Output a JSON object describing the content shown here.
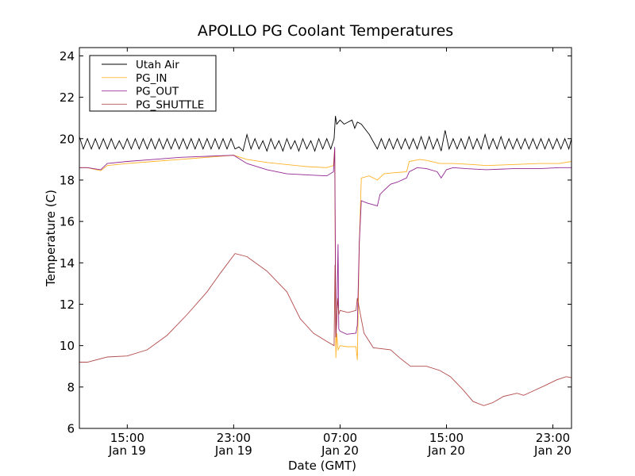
{
  "chart_data": {
    "type": "line",
    "title": "APOLLO PG Coolant Temperatures",
    "xlabel": "Date (GMT)",
    "ylabel": "Temperature (C)",
    "x_units": "hours since Jan 19 00:00 GMT",
    "xlim": [
      11.4,
      48.4
    ],
    "ylim": [
      6,
      24.4
    ],
    "grid": false,
    "legend_placement": "top-left",
    "yticks": [
      6,
      8,
      10,
      12,
      14,
      16,
      18,
      20,
      22,
      24
    ],
    "xticks": [
      {
        "value": 15,
        "time": "15:00",
        "date": "Jan 19"
      },
      {
        "value": 23,
        "time": "23:00",
        "date": "Jan 19"
      },
      {
        "value": 31,
        "time": "07:00",
        "date": "Jan 20"
      },
      {
        "value": 39,
        "time": "15:00",
        "date": "Jan 20"
      },
      {
        "value": 47,
        "time": "23:00",
        "date": "Jan 20"
      }
    ],
    "series": [
      {
        "name": "Utah Air",
        "color": "#000000",
        "points": [
          [
            11.4,
            20.1
          ],
          [
            11.7,
            19.5
          ],
          [
            12.0,
            20.0
          ],
          [
            12.3,
            19.5
          ],
          [
            12.6,
            20.0
          ],
          [
            12.9,
            19.5
          ],
          [
            13.2,
            20.0
          ],
          [
            13.5,
            19.5
          ],
          [
            13.8,
            20.0
          ],
          [
            14.1,
            19.5
          ],
          [
            14.4,
            19.9
          ],
          [
            14.7,
            19.5
          ],
          [
            15.0,
            20.0
          ],
          [
            15.3,
            19.5
          ],
          [
            15.6,
            20.0
          ],
          [
            15.9,
            19.5
          ],
          [
            16.2,
            20.0
          ],
          [
            16.5,
            19.5
          ],
          [
            16.8,
            20.0
          ],
          [
            17.1,
            19.5
          ],
          [
            17.4,
            20.0
          ],
          [
            17.7,
            19.5
          ],
          [
            18.0,
            20.0
          ],
          [
            18.3,
            19.5
          ],
          [
            18.6,
            20.0
          ],
          [
            18.9,
            19.5
          ],
          [
            19.2,
            20.0
          ],
          [
            19.5,
            19.5
          ],
          [
            19.8,
            20.0
          ],
          [
            20.1,
            19.5
          ],
          [
            20.4,
            20.0
          ],
          [
            20.7,
            19.5
          ],
          [
            21.0,
            20.0
          ],
          [
            21.3,
            19.5
          ],
          [
            21.6,
            20.0
          ],
          [
            21.9,
            19.5
          ],
          [
            22.2,
            20.0
          ],
          [
            22.5,
            19.5
          ],
          [
            22.8,
            20.0
          ],
          [
            23.1,
            19.5
          ],
          [
            23.4,
            19.6
          ],
          [
            23.7,
            19.4
          ],
          [
            24.0,
            20.2
          ],
          [
            24.3,
            19.5
          ],
          [
            24.6,
            20.0
          ],
          [
            24.9,
            19.5
          ],
          [
            25.2,
            19.9
          ],
          [
            25.5,
            19.4
          ],
          [
            25.8,
            20.0
          ],
          [
            26.1,
            19.5
          ],
          [
            26.4,
            19.9
          ],
          [
            26.7,
            19.4
          ],
          [
            27.0,
            20.0
          ],
          [
            27.3,
            19.5
          ],
          [
            27.6,
            19.9
          ],
          [
            27.9,
            19.4
          ],
          [
            28.2,
            20.0
          ],
          [
            28.5,
            19.5
          ],
          [
            28.8,
            19.9
          ],
          [
            29.1,
            19.4
          ],
          [
            29.4,
            20.0
          ],
          [
            29.7,
            19.5
          ],
          [
            30.0,
            20.0
          ],
          [
            30.3,
            19.5
          ],
          [
            30.55,
            20.0
          ],
          [
            30.65,
            21.1
          ],
          [
            30.75,
            20.7
          ],
          [
            31.0,
            20.9
          ],
          [
            31.3,
            20.7
          ],
          [
            31.6,
            20.8
          ],
          [
            31.9,
            20.9
          ],
          [
            32.1,
            20.5
          ],
          [
            32.3,
            20.8
          ],
          [
            32.6,
            20.7
          ],
          [
            33.2,
            20.2
          ],
          [
            33.8,
            19.5
          ],
          [
            34.1,
            20.0
          ],
          [
            34.4,
            19.5
          ],
          [
            34.7,
            20.0
          ],
          [
            35.0,
            19.5
          ],
          [
            35.3,
            20.0
          ],
          [
            35.6,
            19.5
          ],
          [
            35.9,
            20.0
          ],
          [
            36.2,
            19.5
          ],
          [
            36.5,
            20.0
          ],
          [
            36.8,
            19.5
          ],
          [
            37.1,
            20.1
          ],
          [
            37.4,
            19.5
          ],
          [
            37.7,
            20.1
          ],
          [
            38.0,
            19.5
          ],
          [
            38.3,
            20.0
          ],
          [
            38.6,
            19.4
          ],
          [
            38.9,
            20.4
          ],
          [
            39.2,
            19.5
          ],
          [
            39.5,
            20.0
          ],
          [
            39.8,
            19.5
          ],
          [
            40.1,
            20.0
          ],
          [
            40.4,
            19.5
          ],
          [
            40.7,
            20.1
          ],
          [
            41.0,
            19.5
          ],
          [
            41.3,
            20.0
          ],
          [
            41.6,
            19.5
          ],
          [
            41.9,
            20.2
          ],
          [
            42.2,
            19.5
          ],
          [
            42.5,
            20.0
          ],
          [
            42.8,
            19.5
          ],
          [
            43.1,
            20.1
          ],
          [
            43.4,
            19.5
          ],
          [
            43.7,
            20.0
          ],
          [
            44.0,
            19.5
          ],
          [
            44.3,
            20.0
          ],
          [
            44.6,
            19.5
          ],
          [
            44.9,
            20.0
          ],
          [
            45.2,
            19.5
          ],
          [
            45.5,
            20.0
          ],
          [
            45.8,
            19.5
          ],
          [
            46.1,
            20.0
          ],
          [
            46.4,
            19.5
          ],
          [
            46.7,
            20.0
          ],
          [
            47.0,
            19.5
          ],
          [
            47.3,
            20.0
          ],
          [
            47.6,
            19.5
          ],
          [
            47.9,
            20.0
          ],
          [
            48.2,
            19.5
          ],
          [
            48.4,
            20.0
          ]
        ]
      },
      {
        "name": "PG_IN",
        "color": "#ffa500",
        "points": [
          [
            11.4,
            18.6
          ],
          [
            12.0,
            18.6
          ],
          [
            13.0,
            18.45
          ],
          [
            13.5,
            18.7
          ],
          [
            15.0,
            18.8
          ],
          [
            17.0,
            18.9
          ],
          [
            19.0,
            19.0
          ],
          [
            21.0,
            19.1
          ],
          [
            23.0,
            19.2
          ],
          [
            24.0,
            19.0
          ],
          [
            25.5,
            18.85
          ],
          [
            27.0,
            18.75
          ],
          [
            28.5,
            18.65
          ],
          [
            30.0,
            18.6
          ],
          [
            30.5,
            18.7
          ],
          [
            30.6,
            19.5
          ],
          [
            30.68,
            9.4
          ],
          [
            30.75,
            10.6
          ],
          [
            30.85,
            9.8
          ],
          [
            31.0,
            10.0
          ],
          [
            31.5,
            9.95
          ],
          [
            32.2,
            9.95
          ],
          [
            32.3,
            9.3
          ],
          [
            32.45,
            15.0
          ],
          [
            32.6,
            18.1
          ],
          [
            33.2,
            18.2
          ],
          [
            33.8,
            18.0
          ],
          [
            34.3,
            18.3
          ],
          [
            35.0,
            18.35
          ],
          [
            36.0,
            18.4
          ],
          [
            36.2,
            18.9
          ],
          [
            37.0,
            19.0
          ],
          [
            37.5,
            18.95
          ],
          [
            38.5,
            18.8
          ],
          [
            39.5,
            18.8
          ],
          [
            41.0,
            18.75
          ],
          [
            42.0,
            18.7
          ],
          [
            44.0,
            18.75
          ],
          [
            46.0,
            18.8
          ],
          [
            47.5,
            18.8
          ],
          [
            48.4,
            18.9
          ]
        ]
      },
      {
        "name": "PG_OUT",
        "color": "#800080",
        "points": [
          [
            11.4,
            18.6
          ],
          [
            12.0,
            18.6
          ],
          [
            13.0,
            18.5
          ],
          [
            13.5,
            18.8
          ],
          [
            15.0,
            18.9
          ],
          [
            17.0,
            19.0
          ],
          [
            19.0,
            19.1
          ],
          [
            21.0,
            19.15
          ],
          [
            23.0,
            19.2
          ],
          [
            24.0,
            18.8
          ],
          [
            25.5,
            18.5
          ],
          [
            27.0,
            18.3
          ],
          [
            28.5,
            18.25
          ],
          [
            30.0,
            18.2
          ],
          [
            30.5,
            18.4
          ],
          [
            30.6,
            19.6
          ],
          [
            30.68,
            10.4
          ],
          [
            30.75,
            11.2
          ],
          [
            30.85,
            14.9
          ],
          [
            30.9,
            10.8
          ],
          [
            31.0,
            10.7
          ],
          [
            31.5,
            10.55
          ],
          [
            32.2,
            10.6
          ],
          [
            32.3,
            11.0
          ],
          [
            32.45,
            15.0
          ],
          [
            32.6,
            17.0
          ],
          [
            33.0,
            16.9
          ],
          [
            33.8,
            16.75
          ],
          [
            34.0,
            17.3
          ],
          [
            34.3,
            17.5
          ],
          [
            34.8,
            17.8
          ],
          [
            35.3,
            17.9
          ],
          [
            36.0,
            18.1
          ],
          [
            36.2,
            18.4
          ],
          [
            36.8,
            18.6
          ],
          [
            37.5,
            18.55
          ],
          [
            38.3,
            18.4
          ],
          [
            38.6,
            18.1
          ],
          [
            39.0,
            18.5
          ],
          [
            39.5,
            18.6
          ],
          [
            40.5,
            18.55
          ],
          [
            42.0,
            18.5
          ],
          [
            44.0,
            18.55
          ],
          [
            46.0,
            18.55
          ],
          [
            47.5,
            18.6
          ],
          [
            48.4,
            18.6
          ]
        ]
      },
      {
        "name": "PG_SHUTTLE",
        "color": "#a52a2a",
        "points": [
          [
            11.4,
            9.2
          ],
          [
            12.0,
            9.2
          ],
          [
            13.5,
            9.45
          ],
          [
            15.0,
            9.5
          ],
          [
            16.5,
            9.8
          ],
          [
            18.0,
            10.5
          ],
          [
            19.5,
            11.5
          ],
          [
            21.0,
            12.6
          ],
          [
            22.0,
            13.5
          ],
          [
            23.1,
            14.45
          ],
          [
            24.0,
            14.3
          ],
          [
            25.5,
            13.6
          ],
          [
            27.0,
            12.6
          ],
          [
            28.0,
            11.3
          ],
          [
            29.0,
            10.6
          ],
          [
            30.0,
            10.2
          ],
          [
            30.55,
            10.0
          ],
          [
            30.62,
            13.9
          ],
          [
            30.68,
            10.4
          ],
          [
            30.8,
            12.3
          ],
          [
            30.9,
            11.5
          ],
          [
            31.0,
            11.7
          ],
          [
            31.6,
            11.6
          ],
          [
            32.2,
            11.7
          ],
          [
            32.3,
            12.3
          ],
          [
            32.5,
            11.6
          ],
          [
            32.8,
            10.6
          ],
          [
            33.5,
            9.9
          ],
          [
            34.8,
            9.8
          ],
          [
            35.5,
            9.4
          ],
          [
            36.3,
            9.0
          ],
          [
            37.5,
            9.0
          ],
          [
            38.5,
            8.8
          ],
          [
            39.3,
            8.5
          ],
          [
            40.2,
            7.9
          ],
          [
            41.0,
            7.3
          ],
          [
            41.8,
            7.1
          ],
          [
            42.5,
            7.25
          ],
          [
            43.3,
            7.55
          ],
          [
            44.3,
            7.7
          ],
          [
            44.8,
            7.6
          ],
          [
            45.5,
            7.8
          ],
          [
            46.5,
            8.1
          ],
          [
            47.3,
            8.35
          ],
          [
            48.0,
            8.5
          ],
          [
            48.4,
            8.45
          ]
        ]
      }
    ]
  }
}
